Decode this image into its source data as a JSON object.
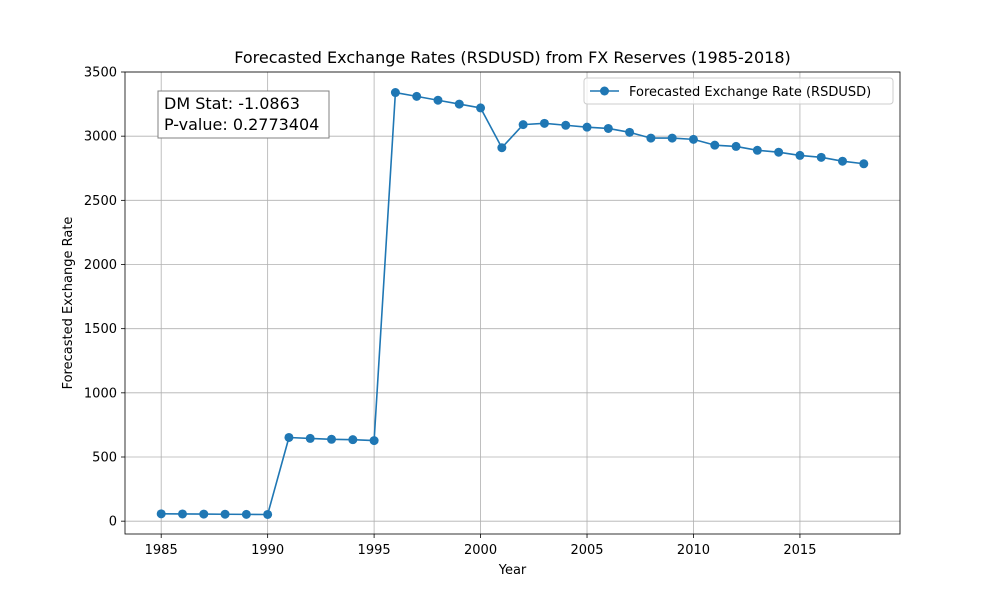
{
  "chart_data": {
    "type": "line",
    "title": "Forecasted Exchange Rates (RSDUSD) from FX Reserves (1985-2018)",
    "xlabel": "Year",
    "ylabel": "Forecasted Exchange Rate",
    "xlim": [
      1983.3,
      2019.7
    ],
    "ylim": [
      -100,
      3500
    ],
    "xticks": [
      1985,
      1990,
      1995,
      2000,
      2005,
      2010,
      2015
    ],
    "yticks": [
      0,
      500,
      1000,
      1500,
      2000,
      2500,
      3000,
      3500
    ],
    "grid": true,
    "legend_position": "upper right",
    "series": [
      {
        "name": "Forecasted Exchange Rate (RSDUSD)",
        "color": "#1f77b4",
        "marker": "circle",
        "x": [
          1985,
          1986,
          1987,
          1988,
          1989,
          1990,
          1991,
          1992,
          1993,
          1994,
          1995,
          1996,
          1997,
          1998,
          1999,
          2000,
          2001,
          2002,
          2003,
          2004,
          2005,
          2006,
          2007,
          2008,
          2009,
          2010,
          2011,
          2012,
          2013,
          2014,
          2015,
          2016,
          2017,
          2018
        ],
        "y": [
          57,
          56,
          55,
          54,
          53,
          52,
          652,
          645,
          638,
          635,
          628,
          3340,
          3310,
          3280,
          3250,
          3220,
          2910,
          3090,
          3100,
          3085,
          3070,
          3060,
          3030,
          2985,
          2985,
          2975,
          2930,
          2920,
          2890,
          2875,
          2850,
          2835,
          2805,
          2785
        ]
      }
    ],
    "annotation": {
      "lines": [
        "DM Stat: -1.0863",
        "P-value: 0.2773404"
      ]
    }
  }
}
